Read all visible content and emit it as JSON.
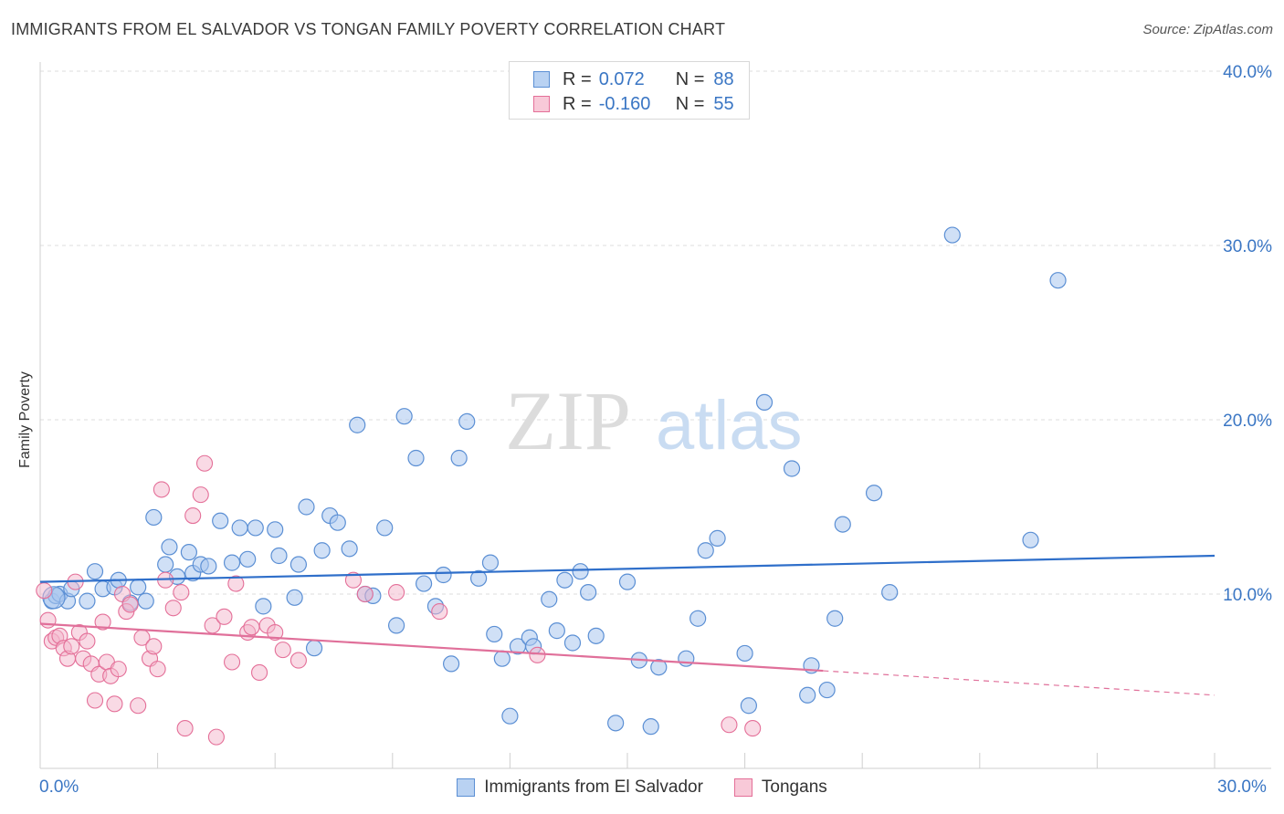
{
  "title": "IMMIGRANTS FROM EL SALVADOR VS TONGAN FAMILY POVERTY CORRELATION CHART",
  "source": "Source: ZipAtlas.com",
  "watermark": {
    "zip": "ZIP",
    "atlas": "atlas"
  },
  "legend": {
    "r_label": "R =",
    "n_label": "N =",
    "rows": [
      {
        "r": "0.072",
        "n": "88"
      },
      {
        "r": "-0.160",
        "n": "55"
      }
    ]
  },
  "chart_data": {
    "type": "scatter",
    "title": "IMMIGRANTS FROM EL SALVADOR VS TONGAN FAMILY POVERTY CORRELATION CHART",
    "ylabel": "Family Poverty",
    "xlim": [
      0,
      30
    ],
    "ylim": [
      0,
      40
    ],
    "x_tick_labels": [
      "0.0%",
      "30.0%"
    ],
    "y_ticks": [
      10,
      20,
      30,
      40
    ],
    "y_tick_labels": [
      "10.0%",
      "20.0%",
      "30.0%",
      "40.0%"
    ],
    "grid": "horizontal dashed",
    "legend_position": "top-center",
    "colors": {
      "blue": "#5b8fd4",
      "blue_fill": "#a9c6ee",
      "blue_line": "#2f6fca",
      "pink": "#e46f98",
      "pink_fill": "#f4b6cb",
      "pink_line": "#e0709a"
    },
    "series": [
      {
        "name": "Immigrants from El Salvador",
        "color": "#5b8fd4",
        "trend": {
          "x": [
            0,
            30
          ],
          "y": [
            10.7,
            12.2
          ]
        },
        "points": [
          [
            0.3,
            9.6
          ],
          [
            0.4,
            9.9
          ],
          [
            0.5,
            10.0
          ],
          [
            0.7,
            9.6
          ],
          [
            0.8,
            10.3
          ],
          [
            1.2,
            9.6
          ],
          [
            1.4,
            11.3
          ],
          [
            1.6,
            10.3
          ],
          [
            1.9,
            10.4
          ],
          [
            2.0,
            10.8
          ],
          [
            2.3,
            9.5
          ],
          [
            2.5,
            10.4
          ],
          [
            2.7,
            9.6
          ],
          [
            2.9,
            14.4
          ],
          [
            3.2,
            11.7
          ],
          [
            3.3,
            12.7
          ],
          [
            3.5,
            11.0
          ],
          [
            3.8,
            12.4
          ],
          [
            3.9,
            11.2
          ],
          [
            4.1,
            11.7
          ],
          [
            4.3,
            11.6
          ],
          [
            4.6,
            14.2
          ],
          [
            4.9,
            11.8
          ],
          [
            5.1,
            13.8
          ],
          [
            5.3,
            12.0
          ],
          [
            5.5,
            13.8
          ],
          [
            5.7,
            9.3
          ],
          [
            6.0,
            13.7
          ],
          [
            6.1,
            12.2
          ],
          [
            6.5,
            9.8
          ],
          [
            6.6,
            11.7
          ],
          [
            6.8,
            15.0
          ],
          [
            7.0,
            6.9
          ],
          [
            7.2,
            12.5
          ],
          [
            7.4,
            14.5
          ],
          [
            7.6,
            14.1
          ],
          [
            7.9,
            12.6
          ],
          [
            8.1,
            19.7
          ],
          [
            8.3,
            10.0
          ],
          [
            8.5,
            9.9
          ],
          [
            8.8,
            13.8
          ],
          [
            9.1,
            8.2
          ],
          [
            9.3,
            20.2
          ],
          [
            9.6,
            17.8
          ],
          [
            9.8,
            10.6
          ],
          [
            10.1,
            9.3
          ],
          [
            10.3,
            11.1
          ],
          [
            10.5,
            6.0
          ],
          [
            10.7,
            17.8
          ],
          [
            10.9,
            19.9
          ],
          [
            11.2,
            10.9
          ],
          [
            11.5,
            11.8
          ],
          [
            11.6,
            7.7
          ],
          [
            11.8,
            6.3
          ],
          [
            12.0,
            3.0
          ],
          [
            12.2,
            7.0
          ],
          [
            12.5,
            7.5
          ],
          [
            12.6,
            7.0
          ],
          [
            13.0,
            9.7
          ],
          [
            13.2,
            7.9
          ],
          [
            13.4,
            10.8
          ],
          [
            13.6,
            7.2
          ],
          [
            13.8,
            11.3
          ],
          [
            14.0,
            10.1
          ],
          [
            14.2,
            7.6
          ],
          [
            14.7,
            2.6
          ],
          [
            15.0,
            10.7
          ],
          [
            15.3,
            6.2
          ],
          [
            15.6,
            2.4
          ],
          [
            15.8,
            5.8
          ],
          [
            16.5,
            6.3
          ],
          [
            16.8,
            8.6
          ],
          [
            17.0,
            12.5
          ],
          [
            17.3,
            13.2
          ],
          [
            18.0,
            6.6
          ],
          [
            18.1,
            3.6
          ],
          [
            18.5,
            21.0
          ],
          [
            19.2,
            17.2
          ],
          [
            19.6,
            4.2
          ],
          [
            19.7,
            5.9
          ],
          [
            20.1,
            4.5
          ],
          [
            20.3,
            8.6
          ],
          [
            20.5,
            14.0
          ],
          [
            21.3,
            15.8
          ],
          [
            21.7,
            10.1
          ],
          [
            23.3,
            30.6
          ],
          [
            25.3,
            13.1
          ],
          [
            26.0,
            28.0
          ]
        ]
      },
      {
        "name": "Tongans",
        "color": "#e46f98",
        "trend": {
          "x": [
            0,
            20
          ],
          "y": [
            8.3,
            5.6
          ]
        },
        "trend_dashed": {
          "x": [
            20,
            30
          ],
          "y": [
            5.6,
            4.2
          ]
        },
        "points": [
          [
            0.1,
            10.2
          ],
          [
            0.2,
            8.5
          ],
          [
            0.3,
            7.3
          ],
          [
            0.4,
            7.5
          ],
          [
            0.5,
            7.6
          ],
          [
            0.6,
            6.9
          ],
          [
            0.7,
            6.3
          ],
          [
            0.8,
            7.0
          ],
          [
            0.9,
            10.7
          ],
          [
            1.0,
            7.8
          ],
          [
            1.1,
            6.3
          ],
          [
            1.2,
            7.3
          ],
          [
            1.3,
            6.0
          ],
          [
            1.4,
            3.9
          ],
          [
            1.5,
            5.4
          ],
          [
            1.6,
            8.4
          ],
          [
            1.7,
            6.1
          ],
          [
            1.8,
            5.3
          ],
          [
            1.9,
            3.7
          ],
          [
            2.0,
            5.7
          ],
          [
            2.1,
            10.0
          ],
          [
            2.2,
            9.0
          ],
          [
            2.3,
            9.4
          ],
          [
            2.5,
            3.6
          ],
          [
            2.6,
            7.5
          ],
          [
            2.8,
            6.3
          ],
          [
            2.9,
            7.0
          ],
          [
            3.0,
            5.7
          ],
          [
            3.1,
            16.0
          ],
          [
            3.2,
            10.8
          ],
          [
            3.4,
            9.2
          ],
          [
            3.6,
            10.1
          ],
          [
            3.7,
            2.3
          ],
          [
            3.9,
            14.5
          ],
          [
            4.1,
            15.7
          ],
          [
            4.2,
            17.5
          ],
          [
            4.4,
            8.2
          ],
          [
            4.5,
            1.8
          ],
          [
            4.7,
            8.7
          ],
          [
            4.9,
            6.1
          ],
          [
            5.0,
            10.6
          ],
          [
            5.3,
            7.8
          ],
          [
            5.4,
            8.1
          ],
          [
            5.6,
            5.5
          ],
          [
            5.8,
            8.2
          ],
          [
            6.0,
            7.8
          ],
          [
            6.2,
            6.8
          ],
          [
            6.6,
            6.2
          ],
          [
            8.0,
            10.8
          ],
          [
            8.3,
            10.0
          ],
          [
            9.1,
            10.1
          ],
          [
            10.2,
            9.0
          ],
          [
            12.7,
            6.5
          ],
          [
            17.6,
            2.5
          ],
          [
            18.2,
            2.3
          ]
        ]
      }
    ]
  },
  "bottom_legend": [
    "Immigrants from El Salvador",
    "Tongans"
  ]
}
